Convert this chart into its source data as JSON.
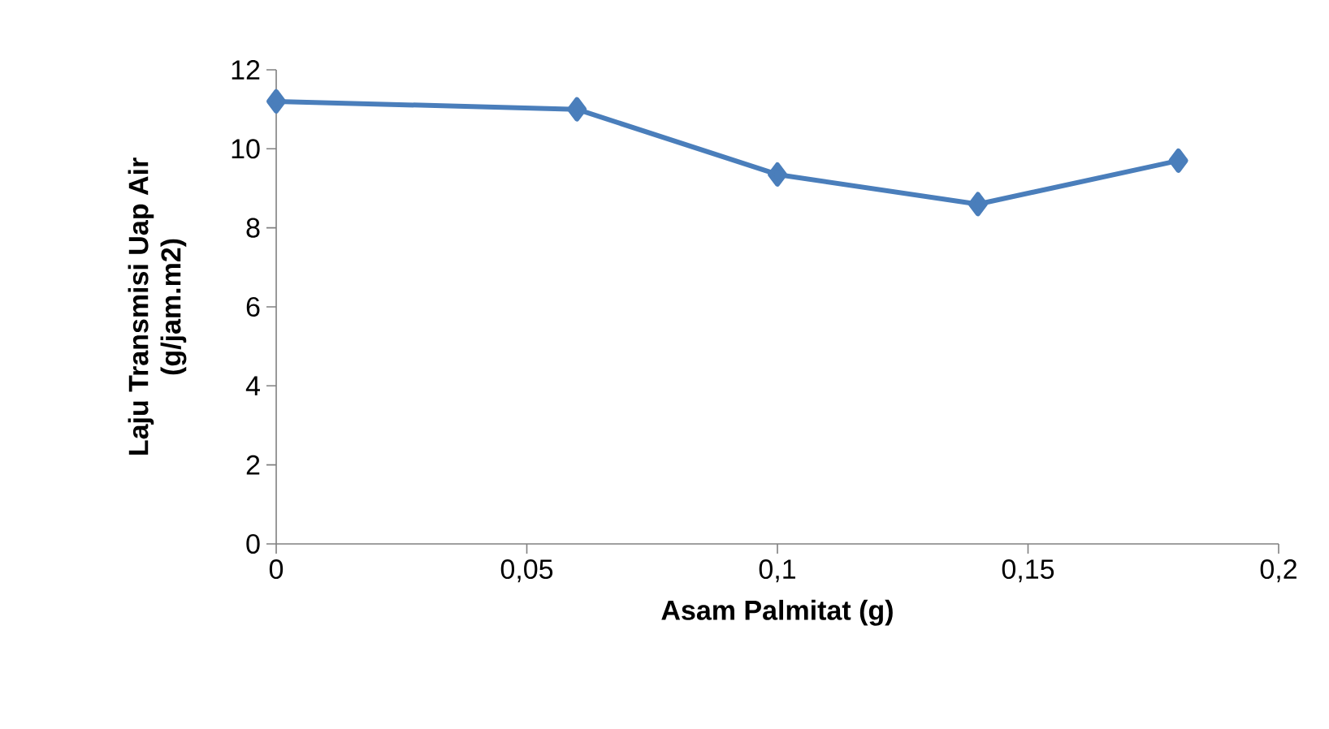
{
  "chart_data": {
    "type": "line",
    "xlabel": "Asam Palmitat (g)",
    "ylabel": "Laju Transmisi Uap Air\n(g/jam.m2)",
    "x": [
      0,
      0.06,
      0.1,
      0.14,
      0.18
    ],
    "series": [
      {
        "color": "#4a7ebb",
        "values": [
          11.2,
          11.0,
          9.35,
          8.6,
          9.7
        ]
      }
    ],
    "xlim": [
      0,
      0.2
    ],
    "xticks": [
      0,
      {
        "value": 0.05,
        "label": "0,05"
      },
      {
        "value": 0.1,
        "label": "0,1"
      },
      {
        "value": 0.15,
        "label": "0,15"
      },
      {
        "value": 0.2,
        "label": "0,2"
      }
    ],
    "ylim": [
      0,
      12
    ],
    "yticks": [
      0,
      2,
      4,
      6,
      8,
      10,
      12
    ],
    "marker": "diamond",
    "line_style": "solid"
  }
}
